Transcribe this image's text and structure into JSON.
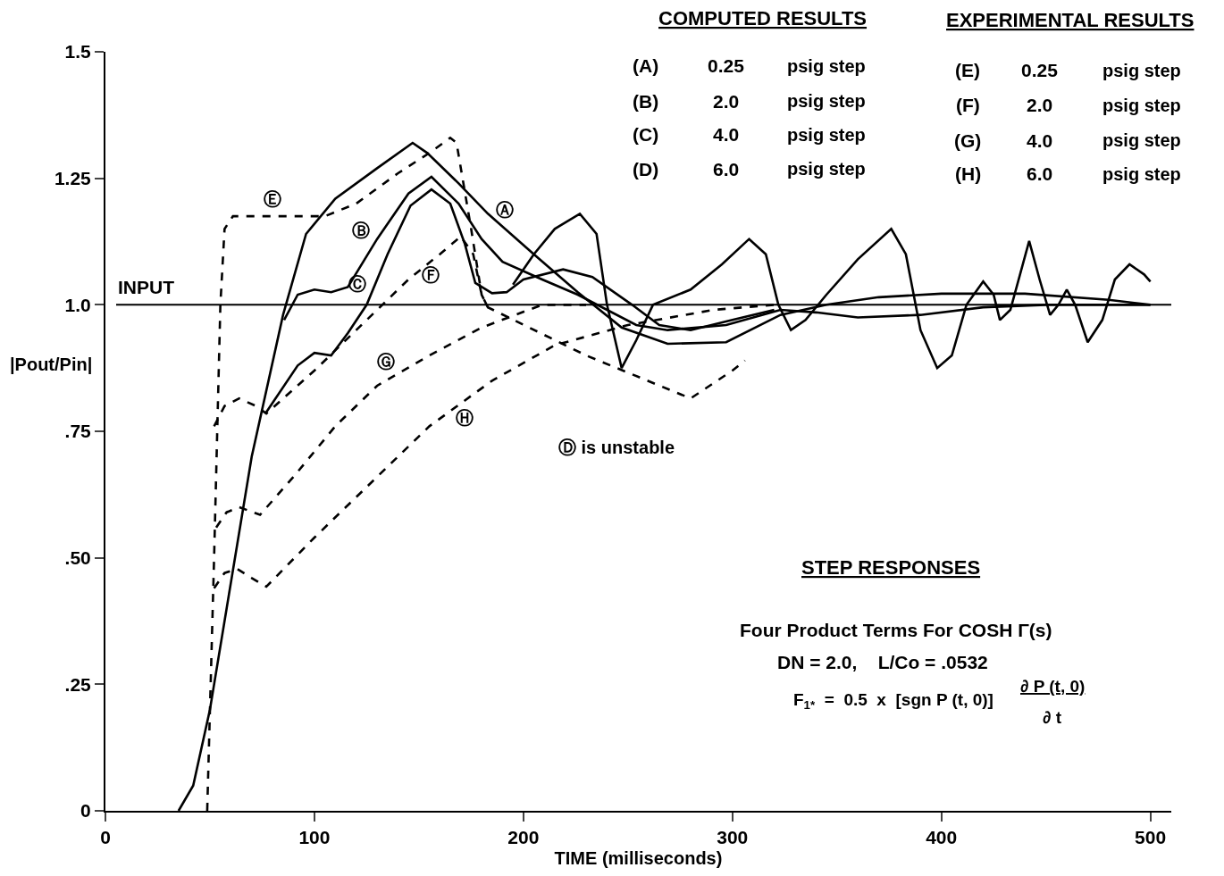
{
  "chart_data": {
    "type": "line",
    "xlabel": "TIME (milliseconds)",
    "ylabel": "|Pout/Pin|",
    "xlim": [
      0,
      510
    ],
    "ylim": [
      0,
      1.5
    ],
    "xticks": [
      0,
      100,
      200,
      300,
      400,
      500
    ],
    "yticks": [
      0,
      {
        "value": 0.25,
        "label": ".25"
      },
      {
        "value": 0.5,
        "label": ".50"
      },
      {
        "value": 0.75,
        "label": ".75"
      },
      {
        "value": 1,
        "label": "1.0"
      },
      1.25,
      1.5
    ],
    "grid": false,
    "marker": "none",
    "ref_lines": [
      {
        "axis": "y",
        "value": 1.0,
        "label": "INPUT"
      }
    ],
    "series": [
      {
        "color": "#000000",
        "line_style": "solid",
        "x": [
          35,
          42,
          50,
          60,
          70,
          85,
          96,
          110,
          130,
          147,
          154,
          169,
          183,
          205,
          226,
          247,
          269,
          297,
          323,
          345,
          370,
          400,
          440,
          480,
          500
        ],
        "values": [
          0,
          0.05,
          0.2,
          0.45,
          0.7,
          0.98,
          1.14,
          1.21,
          1.27,
          1.32,
          1.3,
          1.24,
          1.18,
          1.1,
          1.025,
          0.955,
          0.923,
          0.926,
          0.98,
          1.0,
          1.015,
          1.022,
          1.022,
          1.01,
          1.0
        ]
      },
      {
        "color": "#000000",
        "line_style": "solid",
        "x": [
          85.5,
          92,
          100,
          108,
          116,
          130,
          145,
          156,
          169,
          180,
          190,
          209,
          226,
          254,
          269,
          297,
          323,
          340,
          360,
          390,
          420,
          450,
          500
        ],
        "values": [
          0.97,
          1.02,
          1.03,
          1.025,
          1.035,
          1.13,
          1.22,
          1.253,
          1.2,
          1.13,
          1.085,
          1.05,
          1.02,
          0.96,
          0.95,
          0.96,
          0.99,
          0.985,
          0.975,
          0.98,
          0.995,
          1.0,
          1.0
        ]
      },
      {
        "color": "#000000",
        "line_style": "solid",
        "x": [
          76.5,
          92,
          100,
          108,
          116,
          125,
          135,
          146,
          156,
          165,
          172,
          177,
          185,
          192,
          200,
          219,
          233,
          252,
          265,
          280,
          300,
          320
        ],
        "values": [
          0.785,
          0.88,
          0.905,
          0.9,
          0.944,
          1.0,
          1.1,
          1.196,
          1.228,
          1.2,
          1.12,
          1.043,
          1.023,
          1.025,
          1.05,
          1.07,
          1.055,
          1.0,
          0.96,
          0.95,
          0.97,
          0.99
        ]
      },
      {
        "color": "#000000",
        "line_style": "solid",
        "x": [
          195,
          205,
          215,
          227,
          235,
          240,
          247,
          254,
          262,
          280,
          295,
          308,
          316,
          322,
          328,
          335,
          345,
          360,
          376,
          383,
          390,
          398,
          405,
          412,
          420,
          425,
          428,
          433,
          442,
          447,
          452,
          456,
          460,
          464,
          470,
          477,
          483,
          490,
          497,
          500
        ],
        "values": [
          1.04,
          1.1,
          1.15,
          1.18,
          1.14,
          1.0,
          0.875,
          0.93,
          1.0,
          1.03,
          1.08,
          1.13,
          1.1,
          1.0,
          0.95,
          0.97,
          1.02,
          1.09,
          1.15,
          1.1,
          0.95,
          0.875,
          0.9,
          1.0,
          1.046,
          1.02,
          0.97,
          0.99,
          1.126,
          1.05,
          0.98,
          1.0,
          1.03,
          1.0,
          0.926,
          0.97,
          1.05,
          1.08,
          1.06,
          1.046
        ]
      },
      {
        "color": "#000000",
        "line_style": "dashed",
        "x": [
          48.7,
          52,
          55,
          57,
          61,
          80,
          105,
          120,
          140,
          155,
          165,
          168,
          175,
          180,
          183,
          230,
          280,
          300,
          306
        ],
        "values": [
          0,
          0.5,
          1.0,
          1.15,
          1.175,
          1.175,
          1.175,
          1.2,
          1.26,
          1.3,
          1.33,
          1.32,
          1.15,
          1.02,
          0.995,
          0.9,
          0.815,
          0.87,
          0.89
        ]
      },
      {
        "color": "#000000",
        "line_style": "dashed",
        "x": [
          52,
          57,
          64,
          72,
          77,
          100,
          125,
          145,
          160,
          170,
          176,
          180,
          183
        ],
        "values": [
          0.76,
          0.8,
          0.815,
          0.8,
          0.785,
          0.87,
          0.97,
          1.05,
          1.1,
          1.135,
          1.1,
          1.02,
          0.995
        ]
      },
      {
        "color": "#000000",
        "line_style": "dashed",
        "x": [
          53,
          58,
          64,
          74,
          90,
          110,
          130,
          155,
          180,
          209,
          230
        ],
        "values": [
          0.56,
          0.59,
          0.6,
          0.585,
          0.66,
          0.76,
          0.84,
          0.9,
          0.955,
          1.0,
          1.0
        ]
      },
      {
        "color": "#000000",
        "line_style": "dashed",
        "x": [
          52,
          57,
          63,
          70,
          77,
          100,
          130,
          155,
          185,
          215,
          250,
          291,
          320
        ],
        "values": [
          0.44,
          0.47,
          0.478,
          0.46,
          0.443,
          0.54,
          0.66,
          0.76,
          0.85,
          0.92,
          0.96,
          0.99,
          1.0
        ]
      }
    ],
    "annotations": [
      "COMPUTED RESULTS",
      "EXPERIMENTAL RESULTS",
      "(A)",
      "0.25",
      "psig step",
      "(B)",
      "2.0",
      "psig step",
      "(C)",
      "4.0",
      "psig step",
      "(D)",
      "6.0",
      "psig step",
      "(E)",
      "0.25",
      "psig step",
      "(F)",
      "2.0",
      "psig step",
      "(G)",
      "4.0",
      "psig step",
      "(H)",
      "6.0",
      "psig step",
      "Ⓓ is unstable",
      "STEP RESPONSES",
      "Four Product Terms For COSH Γ(s)",
      "DN = 2.0,    L/Co = .0532",
      "F$_{1*}$  =  0.5  x  [sgn P (t, 0)]",
      "∂ P (t, 0)",
      "∂ t",
      "Ⓐ",
      "Ⓑ",
      "Ⓒ",
      "Ⓔ",
      "Ⓕ",
      "Ⓖ",
      "Ⓗ"
    ]
  }
}
